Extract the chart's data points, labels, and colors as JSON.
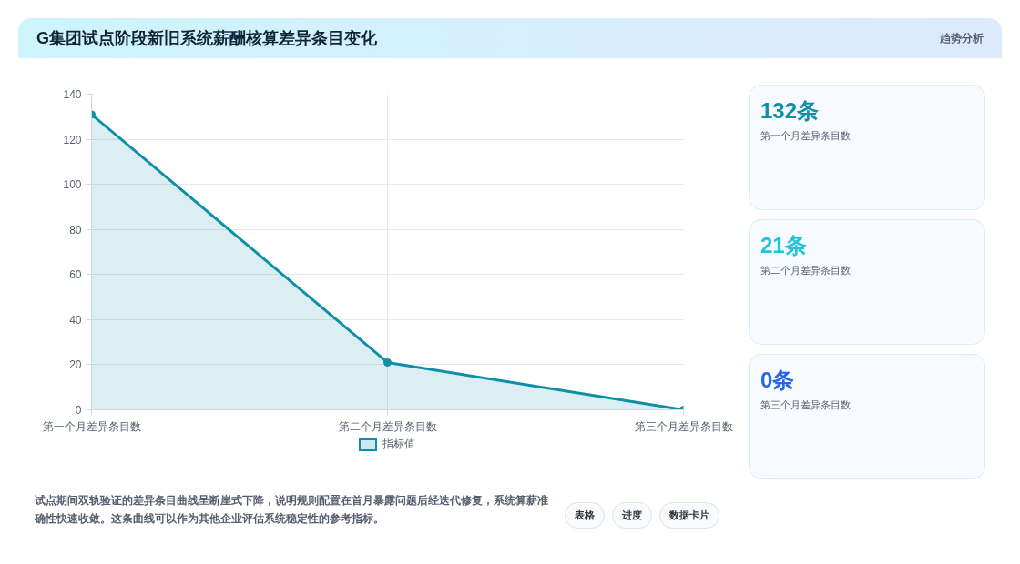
{
  "chart_data": {
    "type": "area",
    "title": "G集团试点阶段新旧系统薪酬核算差异条目变化",
    "categories": [
      "第一个月差异条目数",
      "第二个月差异条目数",
      "第三个月差异条目数"
    ],
    "series": [
      {
        "name": "指标值",
        "color": "#0e8fa8",
        "values": [
          131,
          21,
          0
        ]
      }
    ],
    "ylim": [
      0,
      140
    ],
    "yticks": [
      0,
      20,
      40,
      60,
      80,
      100,
      120,
      140
    ],
    "grid": true,
    "legend": "bottom",
    "marker": "circle",
    "annotations": [
      "趋势分析",
      "132条",
      "第一个月差异条目数",
      "21条",
      "第二个月差异条目数",
      "0条",
      "第三个月差异条目数",
      "试点期间双轨验证的差异条目曲线呈断崖式下降，说明规则配置在首月暴露问题后经迭代修复，系统算薪准确性快速收敛。这条曲线可以作为其他企业评估系统稳定性的参考指标。",
      "表格",
      "进度",
      "数据卡片"
    ]
  }
}
